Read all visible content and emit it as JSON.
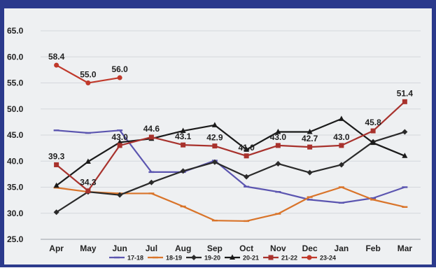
{
  "chart_data": {
    "type": "line",
    "categories": [
      "Apr",
      "May",
      "Jun",
      "Jul",
      "Aug",
      "Sep",
      "Oct",
      "Nov",
      "Dec",
      "Jan",
      "Feb",
      "Mar"
    ],
    "ylim": [
      25.0,
      65.0
    ],
    "yticks": [
      "25.0",
      "30.0",
      "35.0",
      "40.0",
      "45.0",
      "50.0",
      "55.0",
      "60.0",
      "65.0"
    ],
    "grid": true,
    "legend_position": "bottom",
    "series": [
      {
        "name": "17-18",
        "color": "#5b55b0",
        "marker": "dash",
        "values": [
          45.9,
          45.4,
          45.9,
          37.9,
          37.9,
          40.1,
          35.1,
          34.1,
          32.6,
          32.0,
          32.9,
          35.0
        ]
      },
      {
        "name": "18-19",
        "color": "#d9742a",
        "marker": "dash",
        "values": [
          34.9,
          34.1,
          33.8,
          33.8,
          31.3,
          28.6,
          28.5,
          29.9,
          33.1,
          35.0,
          32.6,
          31.2
        ]
      },
      {
        "name": "19-20",
        "color": "#2a2a2a",
        "marker": "diamond",
        "values": [
          30.2,
          34.1,
          33.5,
          35.9,
          38.1,
          39.8,
          37.0,
          39.5,
          37.8,
          39.3,
          43.7,
          45.6
        ]
      },
      {
        "name": "20-21",
        "color": "#1a1a1a",
        "marker": "triangle",
        "values": [
          35.3,
          39.9,
          43.6,
          44.3,
          45.8,
          46.9,
          42.2,
          45.6,
          45.6,
          48.1,
          43.5,
          41.0
        ]
      },
      {
        "name": "21-22",
        "color": "#a8322d",
        "marker": "square",
        "values": [
          39.3,
          34.3,
          43.0,
          44.6,
          43.1,
          42.9,
          41.0,
          43.0,
          42.7,
          43.0,
          45.8,
          51.4
        ],
        "labels": [
          "39.3",
          "34.3",
          "43.0",
          "44.6",
          "43.1",
          "42.9",
          "41.0",
          "43.0",
          "42.7",
          "43.0",
          "45.8",
          "51.4"
        ]
      },
      {
        "name": "23-24",
        "color": "#c0392b",
        "marker": "circle",
        "values": [
          58.4,
          55.0,
          56.0,
          null,
          null,
          null,
          null,
          null,
          null,
          null,
          null,
          null
        ],
        "labels": [
          "58.4",
          "55.0",
          "56.0",
          null,
          null,
          null,
          null,
          null,
          null,
          null,
          null,
          null
        ]
      }
    ]
  }
}
